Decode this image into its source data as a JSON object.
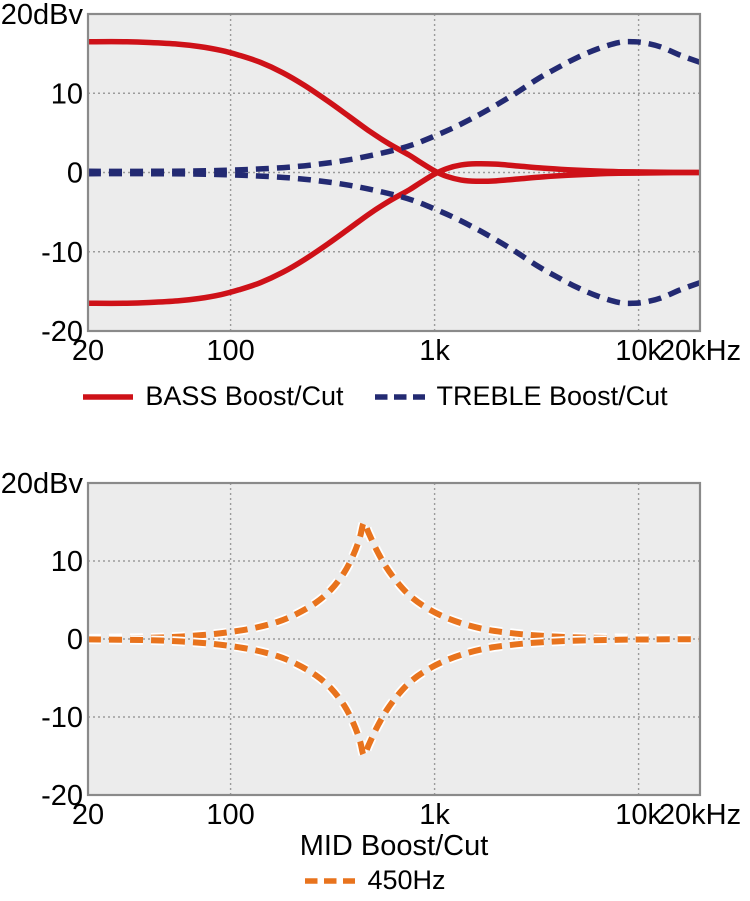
{
  "style": {
    "accent_red": "#ce1118",
    "accent_navy": "#232a72",
    "accent_orange": "#e8731d",
    "plot_background": "#ececec",
    "plot_border": "#8a8a8a",
    "grid_color": "#9b9b9b",
    "text_color": "#000000"
  },
  "chart_data": [
    {
      "type": "line",
      "title": "",
      "xlabel": "",
      "ylabel": "dBv",
      "x_axis": {
        "scale": "log",
        "min": 20,
        "max": 20000,
        "unit": "Hz",
        "ticks": [
          {
            "value": 20,
            "label": "20"
          },
          {
            "value": 100,
            "label": "100"
          },
          {
            "value": 1000,
            "label": "1k"
          },
          {
            "value": 10000,
            "label": "10k"
          },
          {
            "value": 20000,
            "label": "20kHz"
          }
        ]
      },
      "y_axis": {
        "min": -20,
        "max": 20,
        "unit": "dBv",
        "ticks": [
          {
            "value": 20,
            "label": "20dBv"
          },
          {
            "value": 10,
            "label": "10"
          },
          {
            "value": 0,
            "label": "0"
          },
          {
            "value": -10,
            "label": "-10"
          },
          {
            "value": -20,
            "label": "-20"
          }
        ]
      },
      "grid": {
        "x_values": [
          100,
          1000,
          10000
        ],
        "y_values": [
          10,
          0,
          -10
        ]
      },
      "legend": [
        {
          "label": "BASS Boost/Cut",
          "color": "#ce1118",
          "style": "solid"
        },
        {
          "label": "TREBLE Boost/Cut",
          "color": "#232a72",
          "style": "dashed"
        }
      ],
      "series": [
        {
          "name": "bass-boost",
          "color": "#ce1118",
          "style": "solid",
          "points": [
            [
              20,
              16.5
            ],
            [
              30,
              16.5
            ],
            [
              40,
              16.4
            ],
            [
              55,
              16.2
            ],
            [
              70,
              15.9
            ],
            [
              90,
              15.4
            ],
            [
              110,
              14.8
            ],
            [
              140,
              13.9
            ],
            [
              180,
              12.6
            ],
            [
              230,
              11.0
            ],
            [
              300,
              9.0
            ],
            [
              380,
              7.1
            ],
            [
              480,
              5.2
            ],
            [
              600,
              3.6
            ],
            [
              750,
              2.2
            ],
            [
              850,
              1.3
            ],
            [
              1000,
              0.2
            ],
            [
              1150,
              -0.5
            ],
            [
              1350,
              -0.95
            ],
            [
              1600,
              -1.1
            ],
            [
              2000,
              -1.05
            ],
            [
              2600,
              -0.8
            ],
            [
              3400,
              -0.55
            ],
            [
              4500,
              -0.35
            ],
            [
              6000,
              -0.2
            ],
            [
              8000,
              -0.1
            ],
            [
              12000,
              -0.04
            ],
            [
              20000,
              0
            ]
          ]
        },
        {
          "name": "bass-cut",
          "color": "#ce1118",
          "style": "solid",
          "points": [
            [
              20,
              -16.5
            ],
            [
              30,
              -16.5
            ],
            [
              40,
              -16.4
            ],
            [
              55,
              -16.2
            ],
            [
              70,
              -15.9
            ],
            [
              90,
              -15.4
            ],
            [
              110,
              -14.8
            ],
            [
              140,
              -13.9
            ],
            [
              180,
              -12.6
            ],
            [
              230,
              -11.0
            ],
            [
              300,
              -9.0
            ],
            [
              380,
              -7.1
            ],
            [
              480,
              -5.2
            ],
            [
              600,
              -3.6
            ],
            [
              750,
              -2.2
            ],
            [
              850,
              -1.3
            ],
            [
              1000,
              -0.2
            ],
            [
              1150,
              0.5
            ],
            [
              1350,
              0.95
            ],
            [
              1600,
              1.1
            ],
            [
              2000,
              1.05
            ],
            [
              2600,
              0.8
            ],
            [
              3400,
              0.55
            ],
            [
              4500,
              0.35
            ],
            [
              6000,
              0.2
            ],
            [
              8000,
              0.1
            ],
            [
              12000,
              0.04
            ],
            [
              20000,
              0
            ]
          ]
        },
        {
          "name": "treble-boost",
          "color": "#232a72",
          "style": "dashed",
          "points": [
            [
              20,
              0.15
            ],
            [
              40,
              0.15
            ],
            [
              70,
              0.2
            ],
            [
              100,
              0.3
            ],
            [
              140,
              0.45
            ],
            [
              200,
              0.7
            ],
            [
              280,
              1.1
            ],
            [
              380,
              1.6
            ],
            [
              500,
              2.2
            ],
            [
              650,
              2.9
            ],
            [
              800,
              3.6
            ],
            [
              1000,
              4.6
            ],
            [
              1250,
              5.7
            ],
            [
              1600,
              7.1
            ],
            [
              2000,
              8.5
            ],
            [
              2500,
              10.0
            ],
            [
              3200,
              11.8
            ],
            [
              4000,
              13.2
            ],
            [
              5000,
              14.5
            ],
            [
              6300,
              15.6
            ],
            [
              8000,
              16.4
            ],
            [
              9500,
              16.5
            ],
            [
              11000,
              16.3
            ],
            [
              13000,
              15.8
            ],
            [
              16000,
              14.8
            ],
            [
              20000,
              13.9
            ]
          ]
        },
        {
          "name": "treble-cut",
          "color": "#232a72",
          "style": "dashed",
          "points": [
            [
              20,
              -0.15
            ],
            [
              40,
              -0.15
            ],
            [
              70,
              -0.2
            ],
            [
              100,
              -0.3
            ],
            [
              140,
              -0.45
            ],
            [
              200,
              -0.7
            ],
            [
              280,
              -1.1
            ],
            [
              380,
              -1.6
            ],
            [
              500,
              -2.2
            ],
            [
              650,
              -2.9
            ],
            [
              800,
              -3.6
            ],
            [
              1000,
              -4.6
            ],
            [
              1250,
              -5.7
            ],
            [
              1600,
              -7.1
            ],
            [
              2000,
              -8.5
            ],
            [
              2500,
              -10.0
            ],
            [
              3200,
              -11.8
            ],
            [
              4000,
              -13.2
            ],
            [
              5000,
              -14.5
            ],
            [
              6300,
              -15.6
            ],
            [
              8000,
              -16.4
            ],
            [
              9500,
              -16.5
            ],
            [
              11000,
              -16.3
            ],
            [
              13000,
              -15.8
            ],
            [
              16000,
              -14.8
            ],
            [
              20000,
              -13.9
            ]
          ]
        }
      ]
    },
    {
      "type": "line",
      "title": "",
      "xlabel": "MID Boost/Cut",
      "ylabel": "dBv",
      "x_axis": {
        "scale": "log",
        "min": 20,
        "max": 20000,
        "unit": "Hz",
        "ticks": [
          {
            "value": 20,
            "label": "20"
          },
          {
            "value": 100,
            "label": "100"
          },
          {
            "value": 1000,
            "label": "1k"
          },
          {
            "value": 10000,
            "label": "10k"
          },
          {
            "value": 20000,
            "label": "20kHz"
          }
        ]
      },
      "y_axis": {
        "min": -20,
        "max": 20,
        "unit": "dBv",
        "ticks": [
          {
            "value": 20,
            "label": "20dBv"
          },
          {
            "value": 10,
            "label": "10"
          },
          {
            "value": 0,
            "label": "0"
          },
          {
            "value": -10,
            "label": "-10"
          },
          {
            "value": -20,
            "label": "-20"
          }
        ]
      },
      "grid": {
        "x_values": [
          100,
          1000,
          10000
        ],
        "y_values": [
          10,
          0,
          -10
        ]
      },
      "legend": [
        {
          "label": "450Hz",
          "color": "#e8731d",
          "style": "dashed"
        }
      ],
      "series": [
        {
          "name": "mid-boost",
          "color": "#e8731d",
          "style": "dashed",
          "outline": "#ffffff",
          "points": [
            [
              20,
              0.05
            ],
            [
              40,
              0.15
            ],
            [
              60,
              0.35
            ],
            [
              80,
              0.6
            ],
            [
              100,
              0.9
            ],
            [
              130,
              1.4
            ],
            [
              170,
              2.2
            ],
            [
              210,
              3.2
            ],
            [
              260,
              4.6
            ],
            [
              310,
              6.3
            ],
            [
              360,
              8.5
            ],
            [
              400,
              10.8
            ],
            [
              430,
              13.0
            ],
            [
              450,
              14.9
            ],
            [
              475,
              13.6
            ],
            [
              520,
              11.4
            ],
            [
              580,
              9.2
            ],
            [
              660,
              7.2
            ],
            [
              760,
              5.5
            ],
            [
              900,
              4.1
            ],
            [
              1100,
              2.9
            ],
            [
              1400,
              1.9
            ],
            [
              1800,
              1.2
            ],
            [
              2300,
              0.8
            ],
            [
              3000,
              0.5
            ],
            [
              4000,
              0.3
            ],
            [
              5500,
              0.18
            ],
            [
              8000,
              0.1
            ],
            [
              12000,
              0.05
            ],
            [
              20000,
              0.02
            ]
          ]
        },
        {
          "name": "mid-cut",
          "color": "#e8731d",
          "style": "dashed",
          "outline": "#ffffff",
          "points": [
            [
              20,
              -0.05
            ],
            [
              40,
              -0.15
            ],
            [
              60,
              -0.35
            ],
            [
              80,
              -0.6
            ],
            [
              100,
              -0.9
            ],
            [
              130,
              -1.4
            ],
            [
              170,
              -2.2
            ],
            [
              210,
              -3.2
            ],
            [
              260,
              -4.6
            ],
            [
              310,
              -6.3
            ],
            [
              360,
              -8.5
            ],
            [
              400,
              -10.8
            ],
            [
              430,
              -13.0
            ],
            [
              450,
              -14.9
            ],
            [
              475,
              -13.6
            ],
            [
              520,
              -11.4
            ],
            [
              580,
              -9.2
            ],
            [
              660,
              -7.2
            ],
            [
              760,
              -5.5
            ],
            [
              900,
              -4.1
            ],
            [
              1100,
              -2.9
            ],
            [
              1400,
              -1.9
            ],
            [
              1800,
              -1.2
            ],
            [
              2300,
              -0.8
            ],
            [
              3000,
              -0.5
            ],
            [
              4000,
              -0.3
            ],
            [
              5500,
              -0.18
            ],
            [
              8000,
              -0.1
            ],
            [
              12000,
              -0.05
            ],
            [
              20000,
              -0.02
            ]
          ]
        }
      ]
    }
  ]
}
